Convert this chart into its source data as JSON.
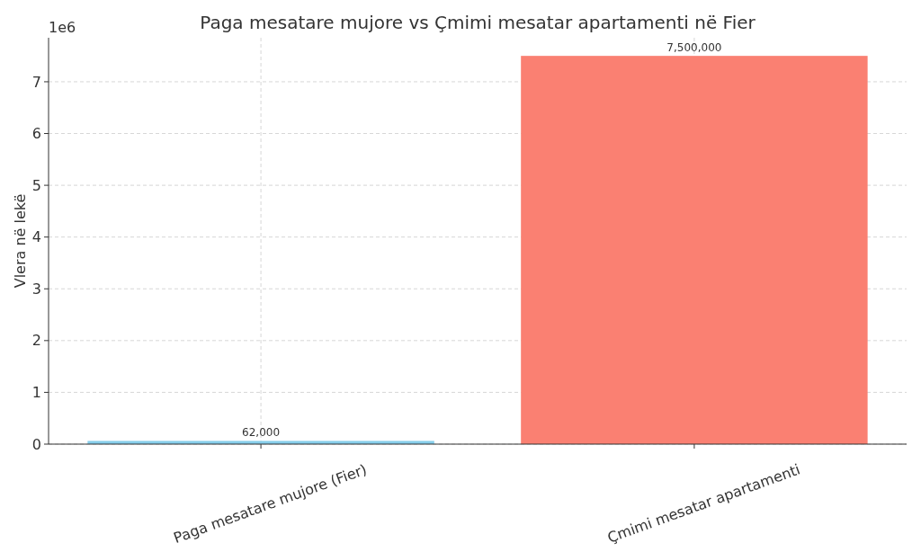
{
  "chart_data": {
    "type": "bar",
    "title": "Paga mesatare mujore vs Çmimi mesatar apartamenti në Fier",
    "ylabel": "Vlera në lekë",
    "categories": [
      "Paga mesatare mujore (Fier)",
      "Çmimi mesatar apartamenti"
    ],
    "values": [
      0.062,
      7.5
    ],
    "colors": [
      "#87ceeb",
      "#fa8072"
    ],
    "ylim": [
      0,
      7.85
    ],
    "yticks": [
      0,
      1,
      2,
      3,
      4,
      5,
      6,
      7
    ],
    "annotations": [
      "1e6",
      {
        "text": "62,000",
        "x": "Paga mesatare mujore (Fier)",
        "y": 0.062
      },
      {
        "text": "7,500,000",
        "x": "Çmimi mesatar apartamenti",
        "y": 7.5
      }
    ],
    "grid": true
  }
}
